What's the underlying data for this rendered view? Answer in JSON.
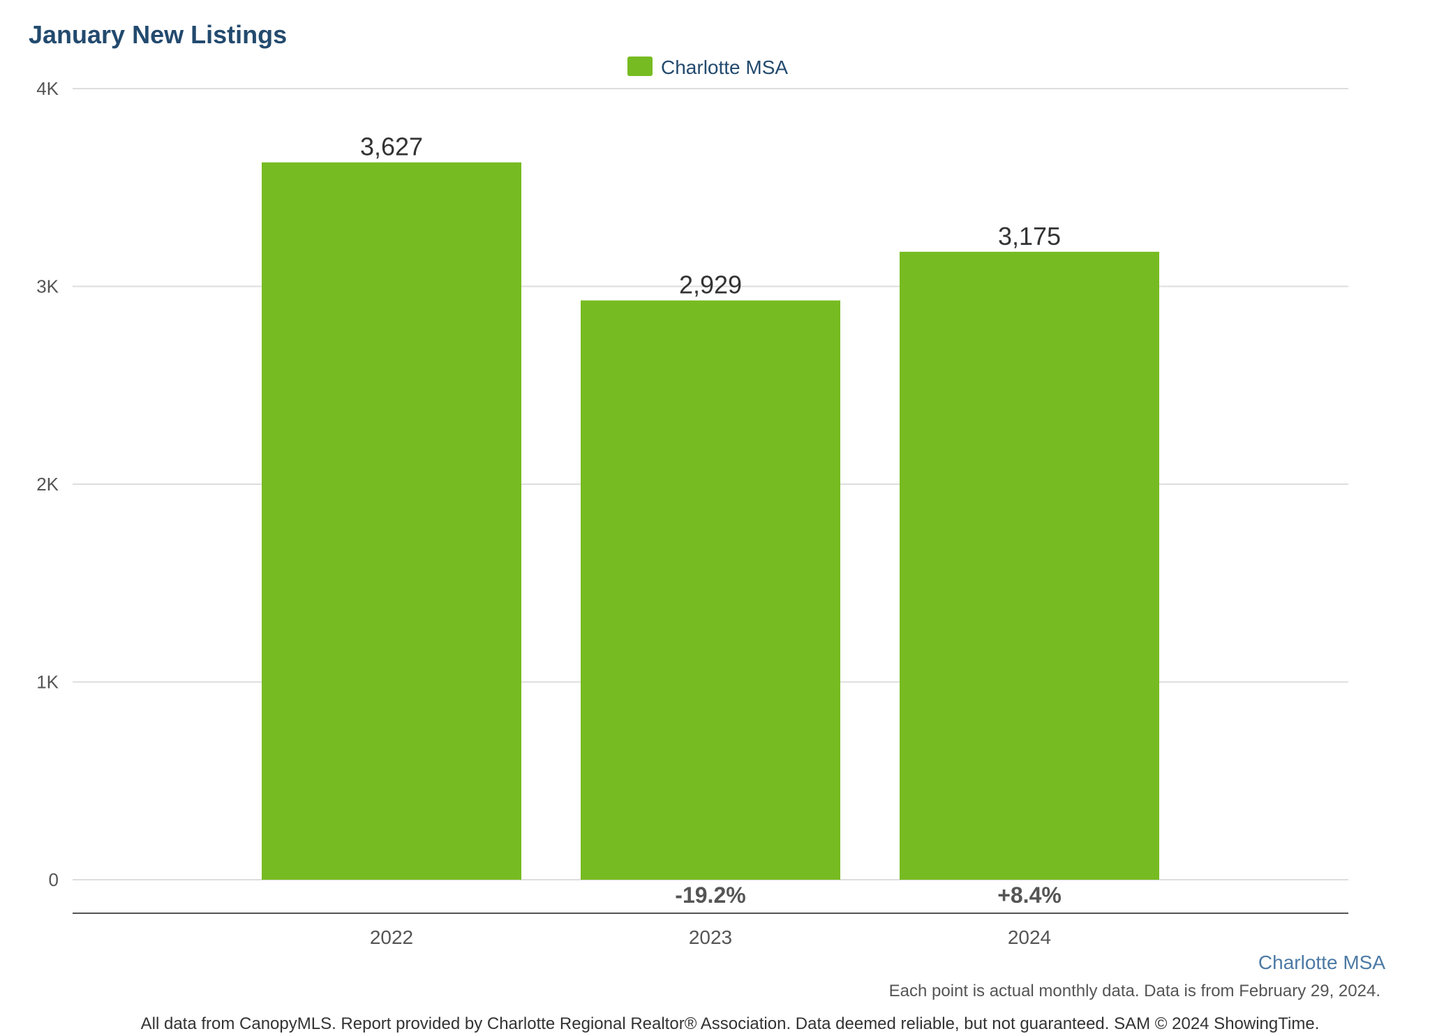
{
  "chart_data": {
    "type": "bar",
    "title": "January New Listings",
    "categories": [
      "2022",
      "2023",
      "2024"
    ],
    "series": [
      {
        "name": "Charlotte MSA",
        "values": [
          3627,
          2929,
          3175
        ],
        "value_labels": [
          "3,627",
          "2,929",
          "3,175"
        ],
        "color": "#77bb22"
      }
    ],
    "changes": [
      "",
      "-19.2%",
      "+8.4%"
    ],
    "ylim": [
      0,
      4000
    ],
    "yticks": [
      0,
      1000,
      2000,
      3000,
      4000
    ],
    "ytick_labels": [
      "0",
      "1K",
      "2K",
      "3K",
      "4K"
    ],
    "grid": true,
    "legend": "top-center"
  },
  "footer": {
    "series_label": "Charlotte MSA",
    "note": "Each point is actual monthly data. Data is from February 29, 2024.",
    "credits": "All data from CanopyMLS. Report provided by Charlotte Regional Realtor® Association. Data deemed reliable, but not guaranteed. SAM © 2024 ShowingTime."
  },
  "colors": {
    "title": "#234a6e",
    "bar": "#77bb22",
    "grid": "#dddddd",
    "axis": "#555555",
    "footer_series": "#4d7aa5"
  }
}
